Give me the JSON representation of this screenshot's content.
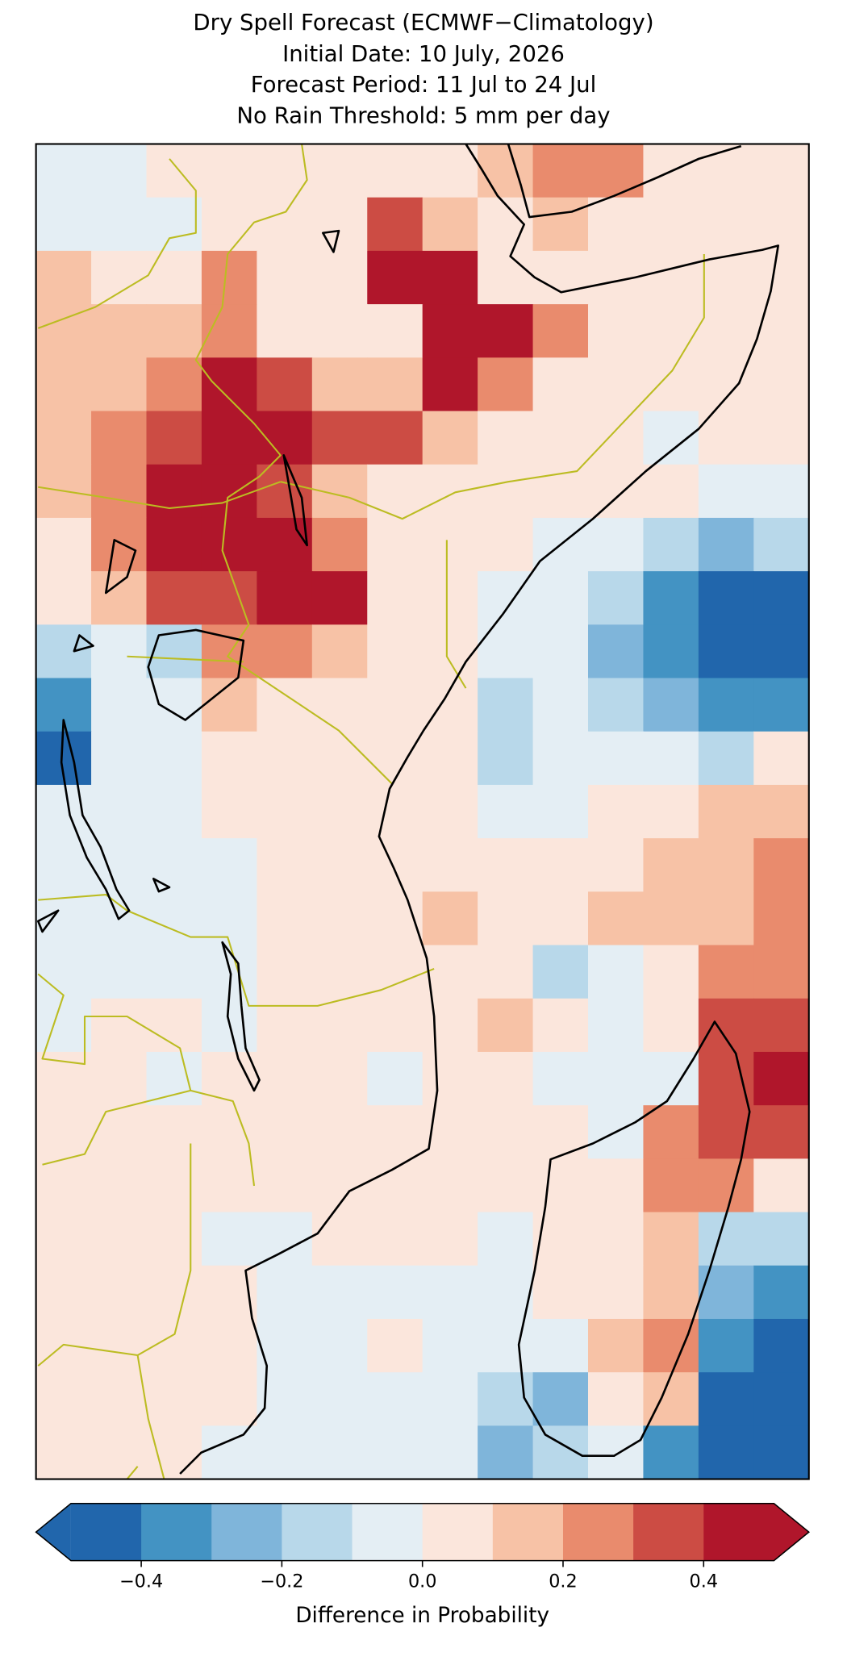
{
  "title_lines": [
    "Dry Spell Forecast (ECMWF−Climatology)",
    "Initial Date: 10 July, 2026",
    "Forecast Period: 11 Jul to 24 Jul",
    "No Rain Threshold: 5 mm per day"
  ],
  "map": {
    "grid": [
      [
        -0.05,
        -0.05,
        0.05,
        0.05,
        0.05,
        0.05,
        0.05,
        0.05,
        0.15,
        0.25,
        0.25,
        0.05,
        0.05,
        0.05
      ],
      [
        -0.05,
        -0.05,
        -0.05,
        0.05,
        0.05,
        0.05,
        0.35,
        0.15,
        0.05,
        0.15,
        0.05,
        0.05,
        0.05,
        0.05
      ],
      [
        0.15,
        0.05,
        0.05,
        0.2,
        0.05,
        0.05,
        0.4,
        0.4,
        0.05,
        0.05,
        0.05,
        0.05,
        0.05,
        0.05
      ],
      [
        0.15,
        0.15,
        0.15,
        0.25,
        0.05,
        0.05,
        0.05,
        0.45,
        0.45,
        0.2,
        0.05,
        0.05,
        0.05,
        0.05
      ],
      [
        0.15,
        0.15,
        0.25,
        0.45,
        0.35,
        0.15,
        0.15,
        0.45,
        0.2,
        0.05,
        0.05,
        0.05,
        0.05,
        0.05
      ],
      [
        0.15,
        0.2,
        0.35,
        0.45,
        0.4,
        0.35,
        0.3,
        0.15,
        0.05,
        0.05,
        0.05,
        -0.05,
        0.05,
        0.05
      ],
      [
        0.15,
        0.2,
        0.45,
        0.45,
        0.3,
        0.15,
        0.05,
        0.05,
        0.05,
        0.05,
        0.05,
        0.05,
        -0.05,
        -0.05
      ],
      [
        0.05,
        0.2,
        0.4,
        0.45,
        0.45,
        0.2,
        0.05,
        0.05,
        0.05,
        -0.05,
        -0.05,
        -0.15,
        -0.25,
        -0.15
      ],
      [
        0.05,
        0.1,
        0.3,
        0.3,
        0.45,
        0.45,
        0.05,
        0.05,
        -0.05,
        -0.05,
        -0.15,
        -0.35,
        -0.45,
        -0.45
      ],
      [
        -0.15,
        -0.05,
        -0.15,
        0.2,
        0.25,
        0.1,
        0.05,
        0.05,
        -0.05,
        -0.05,
        -0.25,
        -0.35,
        -0.45,
        -0.45
      ],
      [
        -0.35,
        -0.05,
        -0.05,
        0.15,
        0.05,
        0.05,
        0.05,
        0.05,
        -0.15,
        -0.05,
        -0.15,
        -0.25,
        -0.35,
        -0.35
      ],
      [
        -0.45,
        -0.05,
        -0.05,
        0.05,
        0.05,
        0.05,
        0.05,
        0.05,
        -0.15,
        -0.05,
        -0.05,
        -0.05,
        -0.15,
        0.05
      ],
      [
        -0.05,
        -0.05,
        -0.05,
        0.05,
        0.05,
        0.05,
        0.05,
        0.05,
        -0.05,
        -0.05,
        0.05,
        0.05,
        0.15,
        0.15
      ],
      [
        -0.05,
        -0.05,
        -0.05,
        -0.05,
        0.05,
        0.05,
        0.05,
        0.05,
        0.05,
        0.05,
        0.05,
        0.15,
        0.15,
        0.2
      ],
      [
        -0.05,
        -0.05,
        -0.05,
        -0.05,
        0.05,
        0.05,
        0.05,
        0.15,
        0.05,
        0.05,
        0.15,
        0.15,
        0.15,
        0.25
      ],
      [
        -0.05,
        -0.05,
        -0.05,
        -0.05,
        0.05,
        0.05,
        0.05,
        0.05,
        0.05,
        -0.15,
        -0.05,
        0.05,
        0.2,
        0.25
      ],
      [
        -0.05,
        0.05,
        0.05,
        -0.05,
        0.05,
        0.05,
        0.05,
        0.05,
        0.15,
        0.05,
        -0.05,
        0.05,
        0.3,
        0.35
      ],
      [
        0.05,
        0.05,
        -0.05,
        0.05,
        0.05,
        0.05,
        -0.05,
        0.05,
        0.05,
        -0.05,
        -0.05,
        -0.05,
        0.35,
        0.45
      ],
      [
        0.05,
        0.05,
        0.05,
        0.05,
        0.05,
        0.05,
        0.05,
        0.05,
        0.05,
        0.05,
        -0.05,
        0.2,
        0.35,
        0.35
      ],
      [
        0.05,
        0.05,
        0.05,
        0.05,
        0.05,
        0.05,
        0.05,
        0.05,
        0.05,
        0.05,
        0.05,
        0.2,
        0.2,
        0.05
      ],
      [
        0.05,
        0.05,
        0.05,
        -0.05,
        -0.05,
        0.05,
        0.05,
        0.05,
        -0.05,
        0.05,
        0.05,
        0.15,
        -0.15,
        -0.15
      ],
      [
        0.05,
        0.05,
        0.05,
        0.05,
        -0.05,
        -0.05,
        -0.05,
        -0.05,
        -0.05,
        0.05,
        0.05,
        0.15,
        -0.25,
        -0.35
      ],
      [
        0.05,
        0.05,
        0.05,
        0.05,
        -0.05,
        -0.05,
        0.05,
        -0.05,
        -0.05,
        -0.05,
        0.15,
        0.2,
        -0.35,
        -0.45
      ],
      [
        0.05,
        0.05,
        0.05,
        0.05,
        -0.05,
        -0.05,
        -0.05,
        -0.05,
        -0.15,
        -0.25,
        0.05,
        0.1,
        -0.45,
        -0.45
      ],
      [
        0.05,
        0.05,
        0.05,
        -0.05,
        -0.05,
        -0.05,
        -0.05,
        -0.05,
        -0.25,
        -0.15,
        -0.05,
        -0.35,
        -0.45,
        -0.45
      ]
    ]
  },
  "colorbar": {
    "boundaries": [
      -0.5,
      -0.4,
      -0.3,
      -0.2,
      -0.1,
      0,
      0.1,
      0.2,
      0.3,
      0.4,
      0.5
    ],
    "colors": [
      "#2166ac",
      "#4393c3",
      "#7fb5da",
      "#b8d8ea",
      "#e4eef4",
      "#fbe6dc",
      "#f7c2a6",
      "#e98b6d",
      "#cc4c44",
      "#b0162b"
    ],
    "extend_colors": [
      "#2166ac",
      "#b0162b"
    ],
    "ticks": [
      {
        "value": -0.4,
        "label": "−0.4"
      },
      {
        "value": -0.2,
        "label": "−0.2"
      },
      {
        "value": 0,
        "label": "0.0"
      },
      {
        "value": 0.2,
        "label": "0.2"
      },
      {
        "value": 0.4,
        "label": "0.4"
      }
    ],
    "label": "Difference in Probability"
  }
}
